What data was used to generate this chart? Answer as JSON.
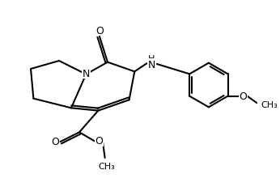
{
  "background_color": "#ffffff",
  "line_color": "#000000",
  "line_width": 1.5,
  "figsize": [
    3.46,
    2.32
  ],
  "dpi": 100,
  "xlim": [
    0,
    10
  ],
  "ylim": [
    0,
    6.7
  ]
}
